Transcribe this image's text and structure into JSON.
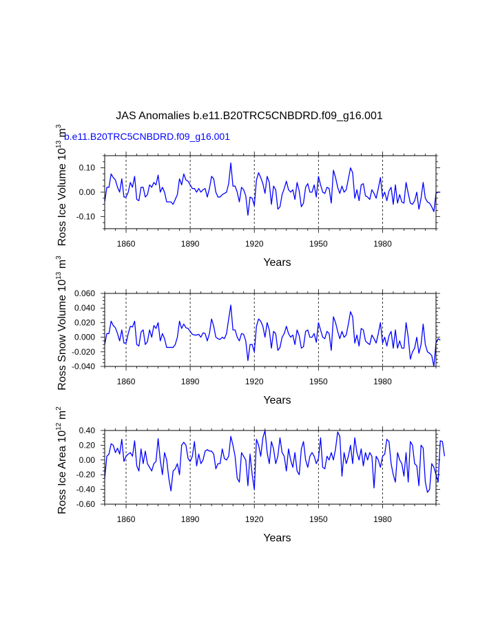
{
  "title": "JAS Anomalies b.e11.B20TRC5CNBDRD.f09_g16.001",
  "legend_label": "b.e11.B20TRC5CNBDRD.f09_g16.001",
  "colors": {
    "series": "#0000ff",
    "text": "#000000",
    "legend": "#0000ff"
  },
  "chart_data": [
    {
      "type": "line",
      "ylabel": {
        "text": "Ross Ice Volume 10",
        "exp": "13",
        "unit": " m",
        "unit_exp": "3"
      },
      "xlabel": "Years",
      "xlim": [
        1850,
        2005
      ],
      "ylim": [
        -0.15,
        0.15
      ],
      "x_ticks": [
        1860,
        1890,
        1920,
        1950,
        1980
      ],
      "x_tick_labels": [
        "1860",
        "1890",
        "1920",
        "1950",
        "1980"
      ],
      "y_ticks": [
        -0.1,
        0.0,
        0.1
      ],
      "y_tick_labels": [
        "-0.10",
        "0.00",
        "0.10"
      ],
      "y_minor_step": 0.025,
      "x_minor_step": 5,
      "reference_lines_x": [
        1860,
        1890,
        1920,
        1950,
        1980
      ],
      "series": [
        {
          "name": "b.e11.B20TRC5CNBDRD.f09_g16.001",
          "x_start": 1850,
          "values": [
            -0.04,
            0.02,
            0.02,
            0.075,
            0.06,
            0.05,
            0.02,
            0.0,
            0.055,
            -0.02,
            -0.02,
            0.0,
            0.04,
            0.02,
            0.065,
            -0.03,
            -0.035,
            0.02,
            0.02,
            -0.02,
            -0.01,
            0.03,
            0.02,
            0.04,
            0.03,
            0.07,
            0.0,
            0.02,
            0.0,
            -0.04,
            -0.04,
            -0.04,
            -0.05,
            -0.03,
            -0.01,
            0.055,
            0.03,
            0.075,
            0.05,
            0.045,
            0.03,
            0.015,
            0.015,
            0.0,
            0.015,
            0.0,
            0.01,
            0.015,
            -0.02,
            0.015,
            0.065,
            0.055,
            0.0,
            -0.02,
            -0.02,
            -0.01,
            -0.005,
            0.0,
            0.035,
            0.12,
            0.025,
            0.025,
            0.0,
            -0.04,
            0.02,
            0.01,
            -0.015,
            -0.095,
            -0.02,
            -0.025,
            -0.055,
            0.05,
            0.08,
            0.06,
            0.035,
            -0.005,
            0.065,
            0.04,
            -0.05,
            0.025,
            0.01,
            -0.07,
            -0.06,
            -0.01,
            0.015,
            0.045,
            0.01,
            0.0,
            0.01,
            -0.03,
            0.04,
            0.005,
            -0.06,
            -0.045,
            0.02,
            0.035,
            0.0,
            0.0,
            0.03,
            -0.02,
            0.065,
            0.03,
            0.0,
            -0.005,
            0.02,
            0.015,
            -0.045,
            0.09,
            0.06,
            0.02,
            -0.005,
            0.025,
            0.0,
            0.01,
            0.055,
            0.1,
            0.08,
            -0.025,
            0.01,
            -0.035,
            0.03,
            0.035,
            -0.015,
            -0.02,
            -0.03,
            0.01,
            -0.005,
            -0.025,
            0.015,
            0.06,
            -0.02,
            0.0,
            -0.035,
            0.005,
            0.02,
            -0.05,
            0.03,
            -0.045,
            -0.01,
            -0.04,
            -0.045,
            0.04,
            -0.005,
            -0.045,
            -0.05,
            -0.035,
            0.0,
            -0.07,
            -0.025,
            0.04,
            -0.025,
            -0.04,
            -0.045,
            -0.06,
            -0.08,
            -0.005,
            0.0,
            0.0
          ]
        }
      ]
    },
    {
      "type": "line",
      "ylabel": {
        "text": "Ross Snow Volume 10",
        "exp": "13",
        "unit": " m",
        "unit_exp": "3"
      },
      "xlabel": "Years",
      "xlim": [
        1850,
        2005
      ],
      "ylim": [
        -0.04,
        0.06
      ],
      "x_ticks": [
        1860,
        1890,
        1920,
        1950,
        1980
      ],
      "x_tick_labels": [
        "1860",
        "1890",
        "1920",
        "1950",
        "1980"
      ],
      "y_ticks": [
        -0.04,
        -0.02,
        0.0,
        0.02,
        0.04,
        0.06
      ],
      "y_tick_labels": [
        "-0.040",
        "-0.020",
        "0.000",
        "0.020",
        "0.040",
        "0.060"
      ],
      "y_minor_step": 0.005,
      "x_minor_step": 5,
      "reference_lines_x": [
        1860,
        1890,
        1920,
        1950,
        1980
      ],
      "series": [
        {
          "name": "b.e11.B20TRC5CNBDRD.f09_g16.001",
          "x_start": 1850,
          "values": [
            -0.01,
            0.005,
            0.005,
            0.022,
            0.016,
            0.013,
            0.005,
            -0.005,
            0.01,
            -0.008,
            -0.008,
            0.005,
            0.015,
            0.014,
            0.022,
            -0.01,
            -0.012,
            0.007,
            0.01,
            -0.01,
            -0.006,
            0.01,
            0.0,
            0.016,
            0.012,
            0.02,
            -0.005,
            0.005,
            -0.002,
            -0.014,
            -0.014,
            -0.014,
            -0.014,
            -0.01,
            0.0,
            0.022,
            0.012,
            0.018,
            0.013,
            0.012,
            0.008,
            0.004,
            0.003,
            0.003,
            0.004,
            0.0,
            0.006,
            0.005,
            -0.005,
            0.005,
            0.025,
            0.015,
            0.0,
            -0.002,
            -0.003,
            0.0,
            -0.002,
            0.005,
            0.025,
            0.044,
            0.01,
            0.01,
            0.0,
            -0.005,
            0.005,
            0.004,
            -0.005,
            -0.032,
            -0.01,
            -0.01,
            -0.02,
            0.015,
            0.025,
            0.022,
            0.015,
            0.0,
            0.02,
            0.01,
            -0.015,
            0.008,
            0.005,
            -0.018,
            -0.014,
            0.0,
            0.005,
            0.015,
            0.005,
            0.0,
            0.003,
            -0.01,
            0.01,
            0.002,
            -0.015,
            -0.013,
            0.008,
            0.01,
            0.0,
            0.0,
            0.005,
            -0.007,
            0.02,
            0.01,
            0.0,
            -0.002,
            0.008,
            0.005,
            -0.018,
            0.028,
            0.02,
            0.008,
            -0.002,
            0.008,
            0.0,
            0.003,
            0.018,
            0.035,
            0.028,
            -0.008,
            0.003,
            -0.012,
            0.012,
            0.01,
            -0.005,
            -0.008,
            -0.01,
            0.003,
            -0.002,
            -0.008,
            0.005,
            0.02,
            -0.008,
            0.0,
            -0.012,
            0.002,
            0.008,
            -0.015,
            0.01,
            -0.015,
            -0.005,
            -0.015,
            -0.015,
            0.02,
            0.0,
            -0.03,
            -0.02,
            -0.015,
            0.0,
            -0.022,
            -0.01,
            0.018,
            -0.01,
            -0.02,
            -0.022,
            -0.025,
            -0.04,
            -0.008,
            -0.002,
            -0.004
          ]
        }
      ]
    },
    {
      "type": "line",
      "ylabel": {
        "text": "Ross Ice Area 10",
        "exp": "12",
        "unit": " m",
        "unit_exp": "2"
      },
      "xlabel": "Years",
      "xlim": [
        1850,
        2005
      ],
      "ylim": [
        -0.6,
        0.4
      ],
      "x_ticks": [
        1860,
        1890,
        1920,
        1950,
        1980
      ],
      "x_tick_labels": [
        "1860",
        "1890",
        "1920",
        "1950",
        "1980"
      ],
      "y_ticks": [
        -0.6,
        -0.4,
        -0.2,
        0.0,
        0.2,
        0.4
      ],
      "y_tick_labels": [
        "-0.60",
        "-0.40",
        "-0.20",
        "0.00",
        "0.20",
        "0.40"
      ],
      "y_minor_step": 0.05,
      "x_minor_step": 5,
      "reference_lines_x": [
        1860,
        1890,
        1920,
        1950,
        1980
      ],
      "series": [
        {
          "name": "b.e11.B20TRC5CNBDRD.f09_g16.001",
          "x_start": 1850,
          "values": [
            -0.25,
            0.05,
            0.08,
            0.22,
            0.2,
            0.1,
            0.16,
            0.08,
            0.28,
            -0.02,
            0.05,
            0.08,
            0.1,
            0.05,
            0.26,
            -0.08,
            -0.15,
            0.15,
            -0.05,
            0.12,
            -0.05,
            -0.1,
            -0.15,
            -0.05,
            -0.02,
            0.29,
            0.0,
            -0.2,
            0.1,
            0.0,
            -0.25,
            -0.42,
            -0.15,
            -0.12,
            -0.05,
            -0.2,
            0.2,
            0.24,
            0.2,
            0.02,
            -0.02,
            0.05,
            0.25,
            -0.08,
            0.08,
            -0.05,
            0.0,
            0.12,
            0.14,
            0.12,
            0.12,
            0.08,
            -0.12,
            -0.05,
            -0.05,
            0.15,
            0.02,
            0.0,
            0.05,
            0.32,
            0.2,
            0.05,
            -0.25,
            -0.3,
            0.1,
            0.05,
            0.0,
            -0.35,
            0.08,
            -0.2,
            -0.4,
            0.28,
            0.2,
            0.05,
            0.3,
            0.4,
            0.1,
            -0.05,
            0.25,
            0.15,
            -0.05,
            0.05,
            0.3,
            0.1,
            0.05,
            -0.15,
            0.15,
            0.0,
            -0.1,
            0.1,
            -0.15,
            -0.2,
            0.15,
            0.25,
            0.0,
            -0.1,
            0.05,
            0.1,
            0.05,
            -0.05,
            0.02,
            0.3,
            -0.1,
            -0.12,
            0.05,
            0.0,
            0.1,
            0.0,
            0.15,
            0.38,
            0.32,
            -0.22,
            0.1,
            -0.05,
            0.05,
            0.2,
            -0.05,
            0.3,
            0.1,
            0.0,
            0.15,
            -0.08,
            0.1,
            0.0,
            0.1,
            0.05,
            -0.38,
            0.05,
            0.0,
            -0.1,
            0.05,
            0.08,
            0.28,
            0.25,
            -0.05,
            -0.2,
            -0.3,
            0.1,
            0.0,
            -0.05,
            -0.22,
            0.1,
            -0.3,
            0.25,
            0.2,
            -0.05,
            -0.08,
            -0.35,
            0.2,
            0.16,
            -0.3,
            -0.44,
            -0.4,
            -0.05,
            -0.1,
            -0.2,
            -0.3,
            0.26,
            0.25,
            0.05
          ]
        }
      ]
    }
  ]
}
